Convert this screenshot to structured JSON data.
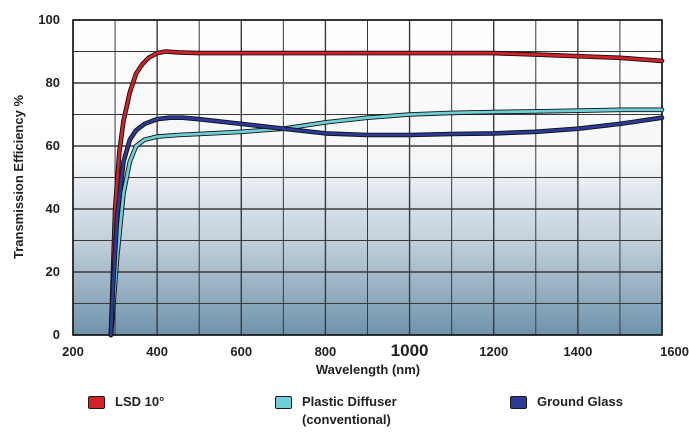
{
  "chart_data": {
    "type": "line",
    "xlabel": "Wavelength (nm)",
    "ylabel": "Transmission Efficiency %",
    "xlim": [
      200,
      1600
    ],
    "ylim": [
      0,
      100
    ],
    "x_ticks": [
      "200",
      "400",
      "600",
      "800",
      "1000",
      "1200",
      "1400",
      "1600"
    ],
    "y_ticks": [
      "0",
      "20",
      "40",
      "60",
      "80",
      "100"
    ],
    "grid": true,
    "legend_position": "bottom",
    "series": [
      {
        "name": "LSD 10°",
        "color": "#d42027",
        "points": [
          [
            290,
            0
          ],
          [
            295,
            20
          ],
          [
            300,
            40
          ],
          [
            310,
            58
          ],
          [
            320,
            68
          ],
          [
            335,
            77
          ],
          [
            350,
            83
          ],
          [
            365,
            86
          ],
          [
            380,
            88
          ],
          [
            400,
            89.5
          ],
          [
            420,
            90
          ],
          [
            450,
            89.7
          ],
          [
            500,
            89.5
          ],
          [
            600,
            89.5
          ],
          [
            700,
            89.5
          ],
          [
            800,
            89.5
          ],
          [
            900,
            89.5
          ],
          [
            1000,
            89.5
          ],
          [
            1100,
            89.5
          ],
          [
            1200,
            89.5
          ],
          [
            1300,
            89
          ],
          [
            1400,
            88.5
          ],
          [
            1500,
            88
          ],
          [
            1600,
            87
          ]
        ]
      },
      {
        "name": "Plastic Diffuser\n(conventional)",
        "color": "#6fcfd8",
        "points": [
          [
            290,
            0
          ],
          [
            295,
            8
          ],
          [
            305,
            25
          ],
          [
            320,
            45
          ],
          [
            335,
            55
          ],
          [
            350,
            60
          ],
          [
            370,
            62
          ],
          [
            400,
            63
          ],
          [
            450,
            63.5
          ],
          [
            500,
            63.8
          ],
          [
            600,
            64.5
          ],
          [
            700,
            65.5
          ],
          [
            800,
            67.5
          ],
          [
            900,
            69
          ],
          [
            1000,
            70
          ],
          [
            1100,
            70.5
          ],
          [
            1200,
            70.8
          ],
          [
            1300,
            71
          ],
          [
            1400,
            71.2
          ],
          [
            1500,
            71.5
          ],
          [
            1600,
            71.5
          ]
        ]
      },
      {
        "name": "Ground Glass",
        "color": "#2a3a96",
        "points": [
          [
            290,
            0
          ],
          [
            295,
            15
          ],
          [
            305,
            38
          ],
          [
            320,
            55
          ],
          [
            335,
            62
          ],
          [
            350,
            65
          ],
          [
            370,
            67
          ],
          [
            400,
            68.5
          ],
          [
            430,
            69
          ],
          [
            460,
            69
          ],
          [
            500,
            68.5
          ],
          [
            600,
            67
          ],
          [
            700,
            65.5
          ],
          [
            800,
            64
          ],
          [
            900,
            63.5
          ],
          [
            1000,
            63.5
          ],
          [
            1100,
            63.8
          ],
          [
            1200,
            64
          ],
          [
            1300,
            64.5
          ],
          [
            1400,
            65.5
          ],
          [
            1500,
            67
          ],
          [
            1600,
            69
          ]
        ]
      }
    ]
  }
}
